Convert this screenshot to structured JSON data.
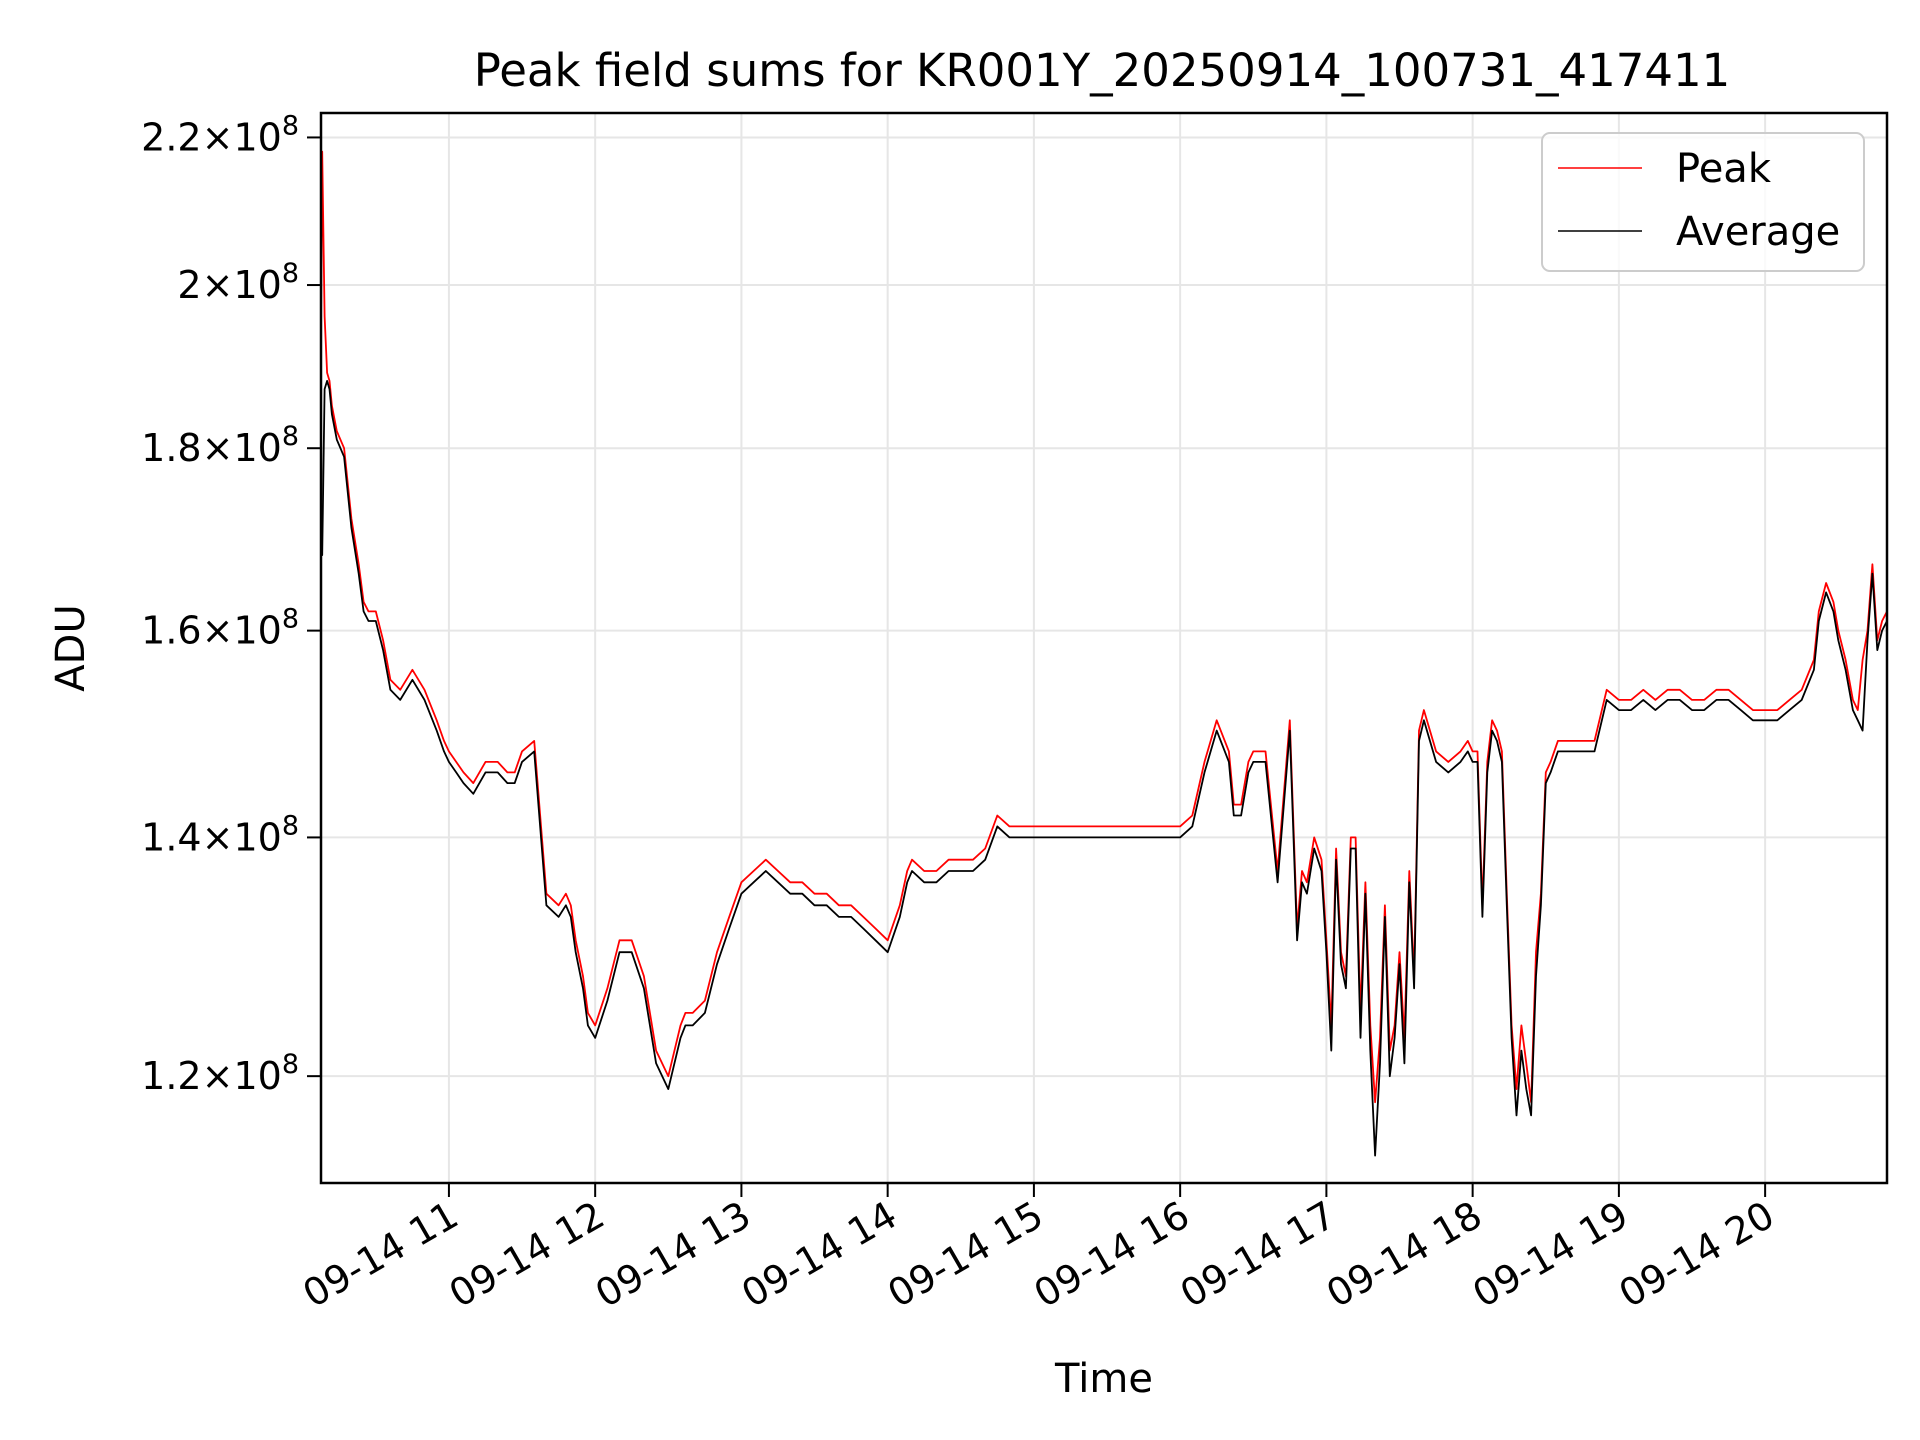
{
  "chart_data": {
    "type": "line",
    "title": "Peak field sums for KR001Y_20250914_100731_417411",
    "xlabel": "Time",
    "ylabel": "ADU",
    "yscale": "log",
    "xlim": [
      "2025-09-14T10:07:31",
      "2025-09-14T20:50:00"
    ],
    "ylim": [
      112000000,
      223500000
    ],
    "grid": true,
    "legend_position": "top-right",
    "x_tick_labels": [
      "09-14 11",
      "09-14 12",
      "09-14 13",
      "09-14 14",
      "09-14 15",
      "09-14 16",
      "09-14 17",
      "09-14 18",
      "09-14 19",
      "09-14 20"
    ],
    "x_ticks": [
      "2025-09-14T11:00",
      "2025-09-14T12:00",
      "2025-09-14T13:00",
      "2025-09-14T14:00",
      "2025-09-14T15:00",
      "2025-09-14T16:00",
      "2025-09-14T17:00",
      "2025-09-14T18:00",
      "2025-09-14T19:00",
      "2025-09-14T20:00"
    ],
    "y_ticks": [
      {
        "value": 120000000,
        "mantissa": "1.2",
        "exponent": "8"
      },
      {
        "value": 140000000,
        "mantissa": "1.4",
        "exponent": "8"
      },
      {
        "value": 160000000,
        "mantissa": "1.6",
        "exponent": "8"
      },
      {
        "value": 180000000,
        "mantissa": "1.8",
        "exponent": "8"
      },
      {
        "value": 200000000,
        "mantissa": "2",
        "exponent": "8"
      },
      {
        "value": 220000000,
        "mantissa": "2.2",
        "exponent": "8"
      }
    ],
    "y_tick_times": "×10",
    "series": [
      {
        "name": "Peak",
        "color": "#ff0000",
        "x": [
          "10:07",
          "10:08",
          "10:09",
          "10:10",
          "10:11",
          "10:12",
          "10:14",
          "10:17",
          "10:20",
          "10:23",
          "10:25",
          "10:27",
          "10:30",
          "10:33",
          "10:36",
          "10:40",
          "10:45",
          "10:50",
          "10:55",
          "10:58",
          "11:00",
          "11:03",
          "11:06",
          "11:10",
          "11:15",
          "11:20",
          "11:24",
          "11:27",
          "11:30",
          "11:35",
          "11:40",
          "11:45",
          "11:48",
          "11:50",
          "11:52",
          "11:55",
          "11:57",
          "12:00",
          "12:05",
          "12:10",
          "12:15",
          "12:20",
          "12:25",
          "12:30",
          "12:35",
          "12:37",
          "12:40",
          "12:45",
          "12:50",
          "12:55",
          "13:00",
          "13:05",
          "13:10",
          "13:15",
          "13:20",
          "13:25",
          "13:30",
          "13:35",
          "13:40",
          "13:45",
          "13:50",
          "13:55",
          "14:00",
          "14:05",
          "14:08",
          "14:10",
          "14:15",
          "14:20",
          "14:25",
          "14:30",
          "14:35",
          "14:40",
          "14:45",
          "14:50",
          "14:55",
          "15:00",
          "15:05",
          "15:10",
          "15:15",
          "15:20",
          "15:25",
          "15:30",
          "15:35",
          "15:40",
          "15:45",
          "15:50",
          "15:55",
          "16:00",
          "16:05",
          "16:10",
          "16:15",
          "16:20",
          "16:22",
          "16:25",
          "16:28",
          "16:30",
          "16:35",
          "16:40",
          "16:45",
          "16:48",
          "16:50",
          "16:52",
          "16:55",
          "16:58",
          "17:00",
          "17:02",
          "17:04",
          "17:06",
          "17:08",
          "17:10",
          "17:12",
          "17:14",
          "17:16",
          "17:18",
          "17:20",
          "17:22",
          "17:24",
          "17:26",
          "17:28",
          "17:30",
          "17:32",
          "17:34",
          "17:36",
          "17:38",
          "17:40",
          "17:45",
          "17:50",
          "17:55",
          "17:58",
          "18:00",
          "18:02",
          "18:04",
          "18:06",
          "18:08",
          "18:10",
          "18:12",
          "18:14",
          "18:16",
          "18:18",
          "18:20",
          "18:22",
          "18:24",
          "18:26",
          "18:28",
          "18:30",
          "18:32",
          "18:35",
          "18:40",
          "18:45",
          "18:50",
          "18:55",
          "19:00",
          "19:05",
          "19:10",
          "19:15",
          "19:20",
          "19:25",
          "19:30",
          "19:35",
          "19:40",
          "19:45",
          "19:50",
          "19:55",
          "20:00",
          "20:05",
          "20:10",
          "20:15",
          "20:20",
          "20:22",
          "20:25",
          "20:28",
          "20:30",
          "20:33",
          "20:36",
          "20:38",
          "20:40",
          "20:42",
          "20:44",
          "20:46",
          "20:48",
          "20:50"
        ],
        "values": [
          172000000,
          218000000,
          196000000,
          189000000,
          188000000,
          185000000,
          182000000,
          180000000,
          172000000,
          167000000,
          163000000,
          162000000,
          162000000,
          159000000,
          155000000,
          154000000,
          156000000,
          154000000,
          151000000,
          149000000,
          148000000,
          147000000,
          146000000,
          145000000,
          147000000,
          147000000,
          146000000,
          146000000,
          148000000,
          149000000,
          135000000,
          134000000,
          135000000,
          134000000,
          131000000,
          128000000,
          125000000,
          124000000,
          127000000,
          131000000,
          131000000,
          128000000,
          122000000,
          120000000,
          124000000,
          125000000,
          125000000,
          126000000,
          130000000,
          133000000,
          136000000,
          137000000,
          138000000,
          137000000,
          136000000,
          136000000,
          135000000,
          135000000,
          134000000,
          134000000,
          133000000,
          132000000,
          131000000,
          134000000,
          137000000,
          138000000,
          137000000,
          137000000,
          138000000,
          138000000,
          138000000,
          139000000,
          142000000,
          141000000,
          141000000,
          141000000,
          141000000,
          141000000,
          141000000,
          141000000,
          141000000,
          141000000,
          141000000,
          141000000,
          141000000,
          141000000,
          141000000,
          141000000,
          142000000,
          147000000,
          151000000,
          148000000,
          143000000,
          143000000,
          147000000,
          148000000,
          148000000,
          137000000,
          151000000,
          132000000,
          137000000,
          136000000,
          140000000,
          138000000,
          131000000,
          124000000,
          139000000,
          130000000,
          128000000,
          140000000,
          140000000,
          125000000,
          136000000,
          124000000,
          118000000,
          123000000,
          134000000,
          122000000,
          124000000,
          130000000,
          123000000,
          137000000,
          128000000,
          150000000,
          152000000,
          148000000,
          147000000,
          148000000,
          149000000,
          148000000,
          148000000,
          134000000,
          147000000,
          151000000,
          150000000,
          148000000,
          135000000,
          124000000,
          119000000,
          124000000,
          121000000,
          118000000,
          130000000,
          135000000,
          146000000,
          147000000,
          149000000,
          149000000,
          149000000,
          149000000,
          154000000,
          153000000,
          153000000,
          154000000,
          153000000,
          154000000,
          154000000,
          153000000,
          153000000,
          154000000,
          154000000,
          153000000,
          152000000,
          152000000,
          152000000,
          153000000,
          154000000,
          157000000,
          162000000,
          165000000,
          163000000,
          160000000,
          157000000,
          153000000,
          152000000,
          157000000,
          160000000,
          167000000,
          159000000,
          161000000,
          162000000
        ]
      },
      {
        "name": "Average",
        "color": "#000000",
        "x": [
          "10:07",
          "10:08",
          "10:09",
          "10:10",
          "10:11",
          "10:12",
          "10:14",
          "10:17",
          "10:20",
          "10:23",
          "10:25",
          "10:27",
          "10:30",
          "10:33",
          "10:36",
          "10:40",
          "10:45",
          "10:50",
          "10:55",
          "10:58",
          "11:00",
          "11:03",
          "11:06",
          "11:10",
          "11:15",
          "11:20",
          "11:24",
          "11:27",
          "11:30",
          "11:35",
          "11:40",
          "11:45",
          "11:48",
          "11:50",
          "11:52",
          "11:55",
          "11:57",
          "12:00",
          "12:05",
          "12:10",
          "12:15",
          "12:20",
          "12:25",
          "12:30",
          "12:35",
          "12:37",
          "12:40",
          "12:45",
          "12:50",
          "12:55",
          "13:00",
          "13:05",
          "13:10",
          "13:15",
          "13:20",
          "13:25",
          "13:30",
          "13:35",
          "13:40",
          "13:45",
          "13:50",
          "13:55",
          "14:00",
          "14:05",
          "14:08",
          "14:10",
          "14:15",
          "14:20",
          "14:25",
          "14:30",
          "14:35",
          "14:40",
          "14:45",
          "14:50",
          "14:55",
          "15:00",
          "15:05",
          "15:10",
          "15:15",
          "15:20",
          "15:25",
          "15:30",
          "15:35",
          "15:40",
          "15:45",
          "15:50",
          "15:55",
          "16:00",
          "16:05",
          "16:10",
          "16:15",
          "16:20",
          "16:22",
          "16:25",
          "16:28",
          "16:30",
          "16:35",
          "16:40",
          "16:45",
          "16:48",
          "16:50",
          "16:52",
          "16:55",
          "16:58",
          "17:00",
          "17:02",
          "17:04",
          "17:06",
          "17:08",
          "17:10",
          "17:12",
          "17:14",
          "17:16",
          "17:18",
          "17:20",
          "17:22",
          "17:24",
          "17:26",
          "17:28",
          "17:30",
          "17:32",
          "17:34",
          "17:36",
          "17:38",
          "17:40",
          "17:45",
          "17:50",
          "17:55",
          "17:58",
          "18:00",
          "18:02",
          "18:04",
          "18:06",
          "18:08",
          "18:10",
          "18:12",
          "18:14",
          "18:16",
          "18:18",
          "18:20",
          "18:22",
          "18:24",
          "18:26",
          "18:28",
          "18:30",
          "18:32",
          "18:35",
          "18:40",
          "18:45",
          "18:50",
          "18:55",
          "19:00",
          "19:05",
          "19:10",
          "19:15",
          "19:20",
          "19:25",
          "19:30",
          "19:35",
          "19:40",
          "19:45",
          "19:50",
          "19:55",
          "20:00",
          "20:05",
          "20:10",
          "20:15",
          "20:20",
          "20:22",
          "20:25",
          "20:28",
          "20:30",
          "20:33",
          "20:36",
          "20:38",
          "20:40",
          "20:42",
          "20:44",
          "20:46",
          "20:48",
          "20:50"
        ],
        "values": [
          171000000,
          168000000,
          187000000,
          188000000,
          187000000,
          184000000,
          181000000,
          179000000,
          171000000,
          166000000,
          162000000,
          161000000,
          161000000,
          158000000,
          154000000,
          153000000,
          155000000,
          153000000,
          150000000,
          148000000,
          147000000,
          146000000,
          145000000,
          144000000,
          146000000,
          146000000,
          145000000,
          145000000,
          147000000,
          148000000,
          134000000,
          133000000,
          134000000,
          133000000,
          130000000,
          127000000,
          124000000,
          123000000,
          126000000,
          130000000,
          130000000,
          127000000,
          121000000,
          119000000,
          123000000,
          124000000,
          124000000,
          125000000,
          129000000,
          132000000,
          135000000,
          136000000,
          137000000,
          136000000,
          135000000,
          135000000,
          134000000,
          134000000,
          133000000,
          133000000,
          132000000,
          131000000,
          130000000,
          133000000,
          136000000,
          137000000,
          136000000,
          136000000,
          137000000,
          137000000,
          137000000,
          138000000,
          141000000,
          140000000,
          140000000,
          140000000,
          140000000,
          140000000,
          140000000,
          140000000,
          140000000,
          140000000,
          140000000,
          140000000,
          140000000,
          140000000,
          140000000,
          140000000,
          141000000,
          146000000,
          150000000,
          147000000,
          142000000,
          142000000,
          146000000,
          147000000,
          147000000,
          136000000,
          150000000,
          131000000,
          136000000,
          135000000,
          139000000,
          137000000,
          130000000,
          122000000,
          138000000,
          129000000,
          127000000,
          139000000,
          139000000,
          123000000,
          135000000,
          122000000,
          114000000,
          121000000,
          133000000,
          120000000,
          123000000,
          129000000,
          121000000,
          136000000,
          127000000,
          149000000,
          151000000,
          147000000,
          146000000,
          147000000,
          148000000,
          147000000,
          147000000,
          133000000,
          146000000,
          150000000,
          149000000,
          147000000,
          134000000,
          123000000,
          117000000,
          122000000,
          119000000,
          117000000,
          128000000,
          134000000,
          145000000,
          146000000,
          148000000,
          148000000,
          148000000,
          148000000,
          153000000,
          152000000,
          152000000,
          153000000,
          152000000,
          153000000,
          153000000,
          152000000,
          152000000,
          153000000,
          153000000,
          152000000,
          151000000,
          151000000,
          151000000,
          152000000,
          153000000,
          156000000,
          161000000,
          164000000,
          162000000,
          159000000,
          156000000,
          152000000,
          151000000,
          150000000,
          159000000,
          166000000,
          158000000,
          160000000,
          161000000
        ]
      }
    ]
  }
}
